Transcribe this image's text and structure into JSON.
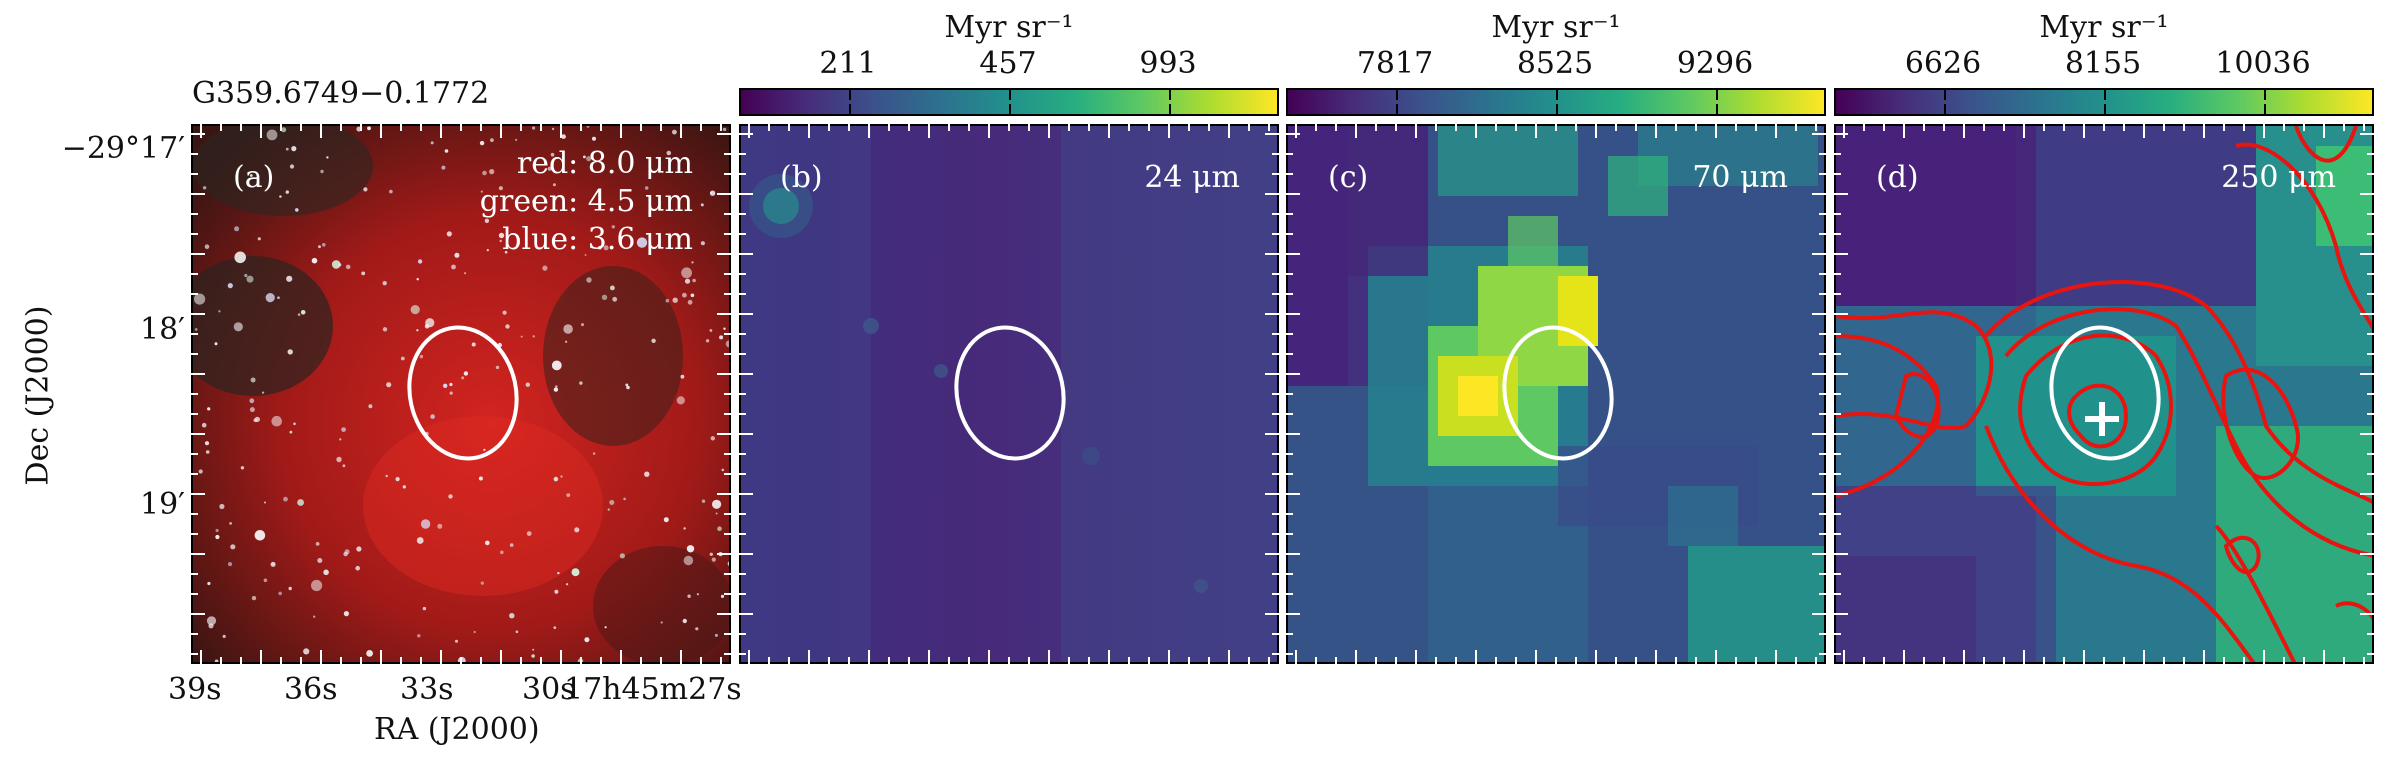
{
  "source_name": "G359.6749−0.1772",
  "axes": {
    "xlabel": "RA (J2000)",
    "ylabel": "Dec (J2000)",
    "ra_ticks": [
      "39s",
      "36s",
      "33s",
      "30s",
      "17h45m27s"
    ],
    "dec_ticks": [
      "−29°17′",
      "18′",
      "19′"
    ]
  },
  "colorbar_unit": "Myr sr⁻¹",
  "panels": [
    {
      "id": "(a)",
      "rgb_legend": [
        "red: 8.0 μm",
        "green: 4.5 μm",
        "blue: 3.6 μm"
      ]
    },
    {
      "id": "(b)",
      "band": "24 μm",
      "colorbar_ticks": [
        "211",
        "457",
        "993"
      ]
    },
    {
      "id": "(c)",
      "band": "70 μm",
      "colorbar_ticks": [
        "7817",
        "8525",
        "9296"
      ]
    },
    {
      "id": "(d)",
      "band": "250 μm",
      "colorbar_ticks": [
        "6626",
        "8155",
        "10036"
      ]
    }
  ],
  "colors": {
    "ellipse": "#ffffff",
    "contour": "#e8140f",
    "cmap_low": "#440154",
    "cmap_high": "#fde725"
  }
}
